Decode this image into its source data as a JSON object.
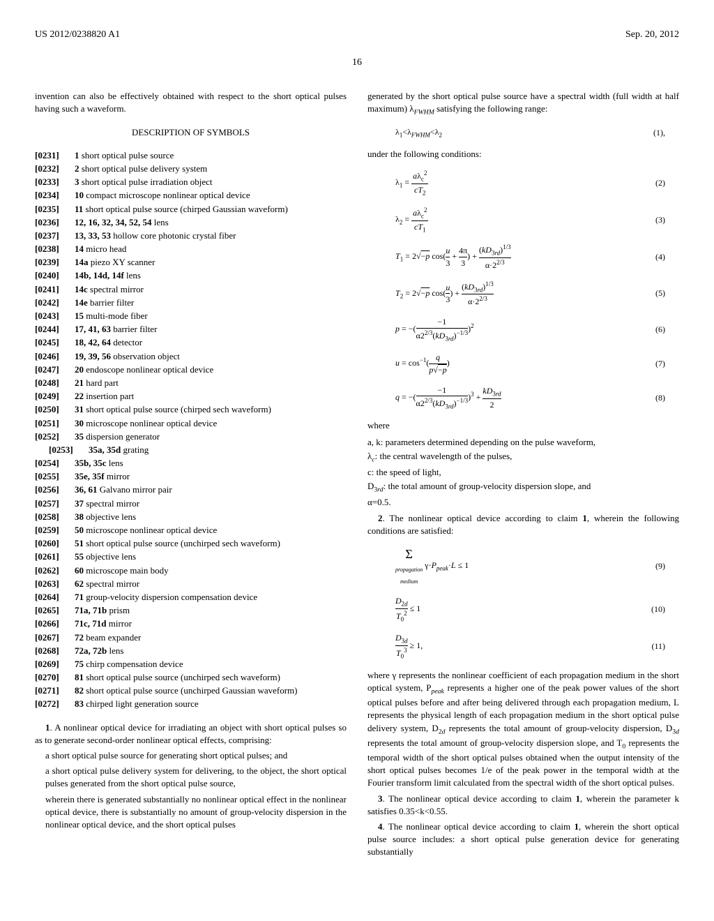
{
  "header": {
    "leftText": "US 2012/0238820 A1",
    "rightText": "Sep. 20, 2012"
  },
  "pageNumber": "16",
  "leftColumn": {
    "intro": "invention can also be effectively obtained with respect to the short optical pulses having such a waveform.",
    "sectionTitle": "DESCRIPTION OF SYMBOLS",
    "symbols": [
      {
        "num": "[0231]",
        "bold": "1",
        "desc": "short optical pulse source"
      },
      {
        "num": "[0232]",
        "bold": "2",
        "desc": "short optical pulse delivery system"
      },
      {
        "num": "[0233]",
        "bold": "3",
        "desc": "short optical pulse irradiation object"
      },
      {
        "num": "[0234]",
        "bold": "10",
        "desc": "compact microscope nonlinear optical device"
      },
      {
        "num": "[0235]",
        "bold": "11",
        "desc": "short optical pulse source (chirped Gaussian waveform)"
      },
      {
        "num": "[0236]",
        "bold": "12, 16, 32, 34, 52, 54",
        "desc": "lens"
      },
      {
        "num": "[0237]",
        "bold": "13, 33, 53",
        "desc": "hollow core photonic crystal fiber"
      },
      {
        "num": "[0238]",
        "bold": "14",
        "desc": "micro head"
      },
      {
        "num": "[0239]",
        "bold": "14a",
        "desc": "piezo XY scanner",
        "italic": "a"
      },
      {
        "num": "[0240]",
        "bold": "14b, 14d, 14f",
        "desc": "lens"
      },
      {
        "num": "[0241]",
        "bold": "14c",
        "desc": "spectral mirror"
      },
      {
        "num": "[0242]",
        "bold": "14e",
        "desc": "barrier filter"
      },
      {
        "num": "[0243]",
        "bold": "15",
        "desc": "multi-mode fiber"
      },
      {
        "num": "[0244]",
        "bold": "17, 41, 63",
        "desc": "barrier filter"
      },
      {
        "num": "[0245]",
        "bold": "18, 42, 64",
        "desc": "detector"
      },
      {
        "num": "[0246]",
        "bold": "19, 39, 56",
        "desc": "observation object"
      },
      {
        "num": "[0247]",
        "bold": "20",
        "desc": "endoscope nonlinear optical device"
      },
      {
        "num": "[0248]",
        "bold": "21",
        "desc": "hard part"
      },
      {
        "num": "[0249]",
        "bold": "22",
        "desc": "insertion part"
      },
      {
        "num": "[0250]",
        "bold": "31",
        "desc": "short optical pulse source (chirped sech waveform)"
      },
      {
        "num": "[0251]",
        "bold": "30",
        "desc": "microscope nonlinear optical device"
      },
      {
        "num": "[0252]",
        "bold": "35",
        "desc": "dispersion generator"
      },
      {
        "num": "",
        "indent": true,
        "subnum": "[0253]",
        "bold": "35a, 35d",
        "desc": "grating"
      },
      {
        "num": "[0254]",
        "bold": "35b, 35c",
        "desc": "lens"
      },
      {
        "num": "[0255]",
        "bold": "35e, 35f",
        "desc": "mirror"
      },
      {
        "num": "[0256]",
        "bold": "36, 61",
        "desc": "Galvano mirror pair"
      },
      {
        "num": "[0257]",
        "bold": "37",
        "desc": "spectral mirror"
      },
      {
        "num": "[0258]",
        "bold": "38",
        "desc": "objective lens"
      },
      {
        "num": "[0259]",
        "bold": "50",
        "desc": "microscope nonlinear optical device"
      },
      {
        "num": "[0260]",
        "bold": "51",
        "desc": "short optical pulse source (unchirped sech waveform)"
      },
      {
        "num": "[0261]",
        "bold": "55",
        "desc": "objective lens"
      },
      {
        "num": "[0262]",
        "bold": "60",
        "desc": "microscope main body"
      },
      {
        "num": "[0263]",
        "bold": "62",
        "desc": "spectral mirror"
      },
      {
        "num": "[0264]",
        "bold": "71",
        "desc": "group-velocity dispersion compensation device"
      },
      {
        "num": "[0265]",
        "bold": "71a, 71b",
        "desc": "prism"
      },
      {
        "num": "[0266]",
        "bold": "71c, 71d",
        "desc": "mirror"
      },
      {
        "num": "[0267]",
        "bold": "72",
        "desc": "beam expander"
      },
      {
        "num": "[0268]",
        "bold": "72a, 72b",
        "desc": "lens"
      },
      {
        "num": "[0269]",
        "bold": "75",
        "desc": "chirp compensation device"
      },
      {
        "num": "[0270]",
        "bold": "81",
        "desc": "short optical pulse source (unchirped sech waveform)"
      },
      {
        "num": "[0271]",
        "bold": "82",
        "desc": "short optical pulse source (unchirped Gaussian waveform)"
      },
      {
        "num": "[0272]",
        "bold": "83",
        "desc": "chirped light generation source"
      }
    ],
    "claim1": {
      "lead": "1. A nonlinear optical device for irradiating an object with short optical pulses so as to generate second-order nonlinear optical effects, comprising:",
      "item1": "a short optical pulse source for generating short optical pulses; and",
      "item2": "a short optical pulse delivery system for delivering, to the object, the short optical pulses generated from the short optical pulse source,",
      "item3": "wherein there is generated substantially no nonlinear optical effect in the nonlinear optical device, there is substantially no amount of group-velocity dispersion in the nonlinear optical device, and the short optical pulses"
    }
  },
  "rightColumn": {
    "intro": "generated by the short optical pulse source have a spectral width (full width at half maximum) λFWHM satisfying the following range:",
    "formula1": {
      "text": "λ₁<λFWHM<λ₂",
      "num": "(1),"
    },
    "conditions": "under the following conditions:",
    "formulas": [
      {
        "text": "λ₁ = aλc² / cT₂",
        "num": "(2)"
      },
      {
        "text": "λ₂ = aλc² / cT₁",
        "num": "(3)"
      },
      {
        "text": "T₁ = 2√−p cos(u/3 + 4π/3) + (kD₃ᵣd)^(1/3) / α·2^(2/3)",
        "num": "(4)"
      },
      {
        "text": "T₂ = 2√−p cos(u/3) + (kD₃ᵣd)^(1/3) / α·2^(2/3)",
        "num": "(5)"
      },
      {
        "text": "p = −( −1 / α2^(2/3)(kD₃ᵣd)^(−1/3) )²",
        "num": "(6)"
      },
      {
        "text": "u = cos⁻¹( q / p√−p )",
        "num": "(7)"
      },
      {
        "text": "q = −( −1 / α2^(2/3)(kD₃ᵣd)^(−1/3) )³ + kD₃ᵣd / 2",
        "num": "(8)"
      }
    ],
    "where": "where",
    "whereLines": [
      "a, k: parameters determined depending on the pulse waveform,",
      "λc: the central wavelength of the pulses,",
      "c: the speed of light,",
      "D₃ᵣd: the total amount of group-velocity dispersion slope, and",
      "α=0.5."
    ],
    "claim2": {
      "lead": "2. The nonlinear optical device according to claim 1, wherein the following conditions are satisfied:",
      "formulas": [
        {
          "text": "Σ (propagation medium) γ·Ppeak·L ≤ 1",
          "num": "(9)"
        },
        {
          "text": "D₂d / T₀² ≤ 1",
          "num": "(10)"
        },
        {
          "text": "D₃d / T₀³ ≥ 1,",
          "num": "(11)"
        }
      ],
      "whereText": "where γ represents the nonlinear coefficient of each propagation medium in the short optical system, Ppeak represents a higher one of the peak power values of the short optical pulses before and after being delivered through each propagation medium, L represents the physical length of each propagation medium in the short optical pulse delivery system, D₂d represents the total amount of group-velocity dispersion, D₃d represents the total amount of group-velocity dispersion slope, and T₀ represents the temporal width of the short optical pulses obtained when the output intensity of the short optical pulses becomes 1/e of the peak power in the temporal width at the Fourier transform limit calculated from the spectral width of the short optical pulses."
    },
    "claim3": "3. The nonlinear optical device according to claim 1, wherein the parameter k satisfies 0.35<k<0.55.",
    "claim4": "4. The nonlinear optical device according to claim 1, wherein the short optical pulse source includes: a short optical pulse generation device for generating substantially"
  }
}
